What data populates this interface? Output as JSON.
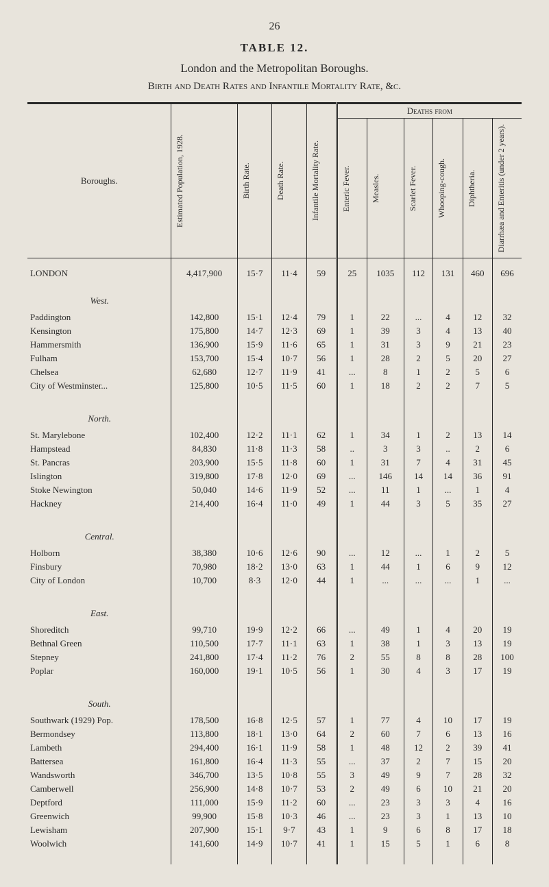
{
  "page_number": "26",
  "table_label": "TABLE 12.",
  "subtitle": "London and the Metropolitan Boroughs.",
  "caption": "Birth and Death Rates and Infantile Mortality Rate, &c.",
  "headers": {
    "boroughs": "Boroughs.",
    "pop": "Estimated Population, 1928.",
    "birth": "Birth Rate.",
    "death": "Death Rate.",
    "imr": "Infantile Mortality Rate.",
    "deaths_from": "Deaths from",
    "enteric": "Enteric Fever.",
    "measles": "Measles.",
    "scarlet": "Scarlet Fever.",
    "whoop": "Whooping-cough.",
    "diph": "Diphtheria.",
    "diarr": "Diarrhæa and Enteritis (under 2 years)."
  },
  "london": {
    "name": "LONDON",
    "pop": "4,417,900",
    "birth": "15·7",
    "death": "11·4",
    "imr": "59",
    "enteric": "25",
    "measles": "1035",
    "scarlet": "112",
    "whoop": "131",
    "diph": "460",
    "diarr": "696"
  },
  "sections": [
    {
      "title": "West.",
      "rows": [
        {
          "name": "Paddington",
          "pop": "142,800",
          "birth": "15·1",
          "death": "12·4",
          "imr": "79",
          "enteric": "1",
          "measles": "22",
          "scarlet": "...",
          "whoop": "4",
          "diph": "12",
          "diarr": "32"
        },
        {
          "name": "Kensington",
          "pop": "175,800",
          "birth": "14·7",
          "death": "12·3",
          "imr": "69",
          "enteric": "1",
          "measles": "39",
          "scarlet": "3",
          "whoop": "4",
          "diph": "13",
          "diarr": "40"
        },
        {
          "name": "Hammersmith",
          "pop": "136,900",
          "birth": "15·9",
          "death": "11·6",
          "imr": "65",
          "enteric": "1",
          "measles": "31",
          "scarlet": "3",
          "whoop": "9",
          "diph": "21",
          "diarr": "23"
        },
        {
          "name": "Fulham",
          "pop": "153,700",
          "birth": "15·4",
          "death": "10·7",
          "imr": "56",
          "enteric": "1",
          "measles": "28",
          "scarlet": "2",
          "whoop": "5",
          "diph": "20",
          "diarr": "27"
        },
        {
          "name": "Chelsea",
          "pop": "62,680",
          "birth": "12·7",
          "death": "11·9",
          "imr": "41",
          "enteric": "...",
          "measles": "8",
          "scarlet": "1",
          "whoop": "2",
          "diph": "5",
          "diarr": "6"
        },
        {
          "name": "City of Westminster...",
          "pop": "125,800",
          "birth": "10·5",
          "death": "11·5",
          "imr": "60",
          "enteric": "1",
          "measles": "18",
          "scarlet": "2",
          "whoop": "2",
          "diph": "7",
          "diarr": "5"
        }
      ]
    },
    {
      "title": "North.",
      "rows": [
        {
          "name": "St. Marylebone",
          "pop": "102,400",
          "birth": "12·2",
          "death": "11·1",
          "imr": "62",
          "enteric": "1",
          "measles": "34",
          "scarlet": "1",
          "whoop": "2",
          "diph": "13",
          "diarr": "14"
        },
        {
          "name": "Hampstead",
          "pop": "84,830",
          "birth": "11·8",
          "death": "11·3",
          "imr": "58",
          "enteric": "..",
          "measles": "3",
          "scarlet": "3",
          "whoop": "..",
          "diph": "2",
          "diarr": "6"
        },
        {
          "name": "St. Pancras",
          "pop": "203,900",
          "birth": "15·5",
          "death": "11·8",
          "imr": "60",
          "enteric": "1",
          "measles": "31",
          "scarlet": "7",
          "whoop": "4",
          "diph": "31",
          "diarr": "45"
        },
        {
          "name": "Islington",
          "pop": "319,800",
          "birth": "17·8",
          "death": "12·0",
          "imr": "69",
          "enteric": "...",
          "measles": "146",
          "scarlet": "14",
          "whoop": "14",
          "diph": "36",
          "diarr": "91"
        },
        {
          "name": "Stoke Newington",
          "pop": "50,040",
          "birth": "14·6",
          "death": "11·9",
          "imr": "52",
          "enteric": "...",
          "measles": "11",
          "scarlet": "1",
          "whoop": "...",
          "diph": "1",
          "diarr": "4"
        },
        {
          "name": "Hackney",
          "pop": "214,400",
          "birth": "16·4",
          "death": "11·0",
          "imr": "49",
          "enteric": "1",
          "measles": "44",
          "scarlet": "3",
          "whoop": "5",
          "diph": "35",
          "diarr": "27"
        }
      ]
    },
    {
      "title": "Central.",
      "rows": [
        {
          "name": "Holborn",
          "pop": "38,380",
          "birth": "10·6",
          "death": "12·6",
          "imr": "90",
          "enteric": "...",
          "measles": "12",
          "scarlet": "...",
          "whoop": "1",
          "diph": "2",
          "diarr": "5"
        },
        {
          "name": "Finsbury",
          "pop": "70,980",
          "birth": "18·2",
          "death": "13·0",
          "imr": "63",
          "enteric": "1",
          "measles": "44",
          "scarlet": "1",
          "whoop": "6",
          "diph": "9",
          "diarr": "12"
        },
        {
          "name": "City of London",
          "pop": "10,700",
          "birth": "8·3",
          "death": "12·0",
          "imr": "44",
          "enteric": "1",
          "measles": "...",
          "scarlet": "...",
          "whoop": "...",
          "diph": "1",
          "diarr": "..."
        }
      ]
    },
    {
      "title": "East.",
      "rows": [
        {
          "name": "Shoreditch",
          "pop": "99,710",
          "birth": "19·9",
          "death": "12·2",
          "imr": "66",
          "enteric": "...",
          "measles": "49",
          "scarlet": "1",
          "whoop": "4",
          "diph": "20",
          "diarr": "19"
        },
        {
          "name": "Bethnal Green",
          "pop": "110,500",
          "birth": "17·7",
          "death": "11·1",
          "imr": "63",
          "enteric": "1",
          "measles": "38",
          "scarlet": "1",
          "whoop": "3",
          "diph": "13",
          "diarr": "19"
        },
        {
          "name": "Stepney",
          "pop": "241,800",
          "birth": "17·4",
          "death": "11·2",
          "imr": "76",
          "enteric": "2",
          "measles": "55",
          "scarlet": "8",
          "whoop": "8",
          "diph": "28",
          "diarr": "100"
        },
        {
          "name": "Poplar",
          "pop": "160,000",
          "birth": "19·1",
          "death": "10·5",
          "imr": "56",
          "enteric": "1",
          "measles": "30",
          "scarlet": "4",
          "whoop": "3",
          "diph": "17",
          "diarr": "19"
        }
      ]
    },
    {
      "title": "South.",
      "rows": [
        {
          "name": "Southwark (1929) Pop.",
          "pop": "178,500",
          "birth": "16·8",
          "death": "12·5",
          "imr": "57",
          "enteric": "1",
          "measles": "77",
          "scarlet": "4",
          "whoop": "10",
          "diph": "17",
          "diarr": "19"
        },
        {
          "name": "Bermondsey",
          "pop": "113,800",
          "birth": "18·1",
          "death": "13·0",
          "imr": "64",
          "enteric": "2",
          "measles": "60",
          "scarlet": "7",
          "whoop": "6",
          "diph": "13",
          "diarr": "16"
        },
        {
          "name": "Lambeth",
          "pop": "294,400",
          "birth": "16·1",
          "death": "11·9",
          "imr": "58",
          "enteric": "1",
          "measles": "48",
          "scarlet": "12",
          "whoop": "2",
          "diph": "39",
          "diarr": "41"
        },
        {
          "name": "Battersea",
          "pop": "161,800",
          "birth": "16·4",
          "death": "11·3",
          "imr": "55",
          "enteric": "...",
          "measles": "37",
          "scarlet": "2",
          "whoop": "7",
          "diph": "15",
          "diarr": "20"
        },
        {
          "name": "Wandsworth",
          "pop": "346,700",
          "birth": "13·5",
          "death": "10·8",
          "imr": "55",
          "enteric": "3",
          "measles": "49",
          "scarlet": "9",
          "whoop": "7",
          "diph": "28",
          "diarr": "32"
        },
        {
          "name": "Camberwell",
          "pop": "256,900",
          "birth": "14·8",
          "death": "10·7",
          "imr": "53",
          "enteric": "2",
          "measles": "49",
          "scarlet": "6",
          "whoop": "10",
          "diph": "21",
          "diarr": "20"
        },
        {
          "name": "Deptford",
          "pop": "111,000",
          "birth": "15·9",
          "death": "11·2",
          "imr": "60",
          "enteric": "...",
          "measles": "23",
          "scarlet": "3",
          "whoop": "3",
          "diph": "4",
          "diarr": "16"
        },
        {
          "name": "Greenwich",
          "pop": "99,900",
          "birth": "15·8",
          "death": "10·3",
          "imr": "46",
          "enteric": "...",
          "measles": "23",
          "scarlet": "3",
          "whoop": "1",
          "diph": "13",
          "diarr": "10"
        },
        {
          "name": "Lewisham",
          "pop": "207,900",
          "birth": "15·1",
          "death": "9·7",
          "imr": "43",
          "enteric": "1",
          "measles": "9",
          "scarlet": "6",
          "whoop": "8",
          "diph": "17",
          "diarr": "18"
        },
        {
          "name": "Woolwich",
          "pop": "141,600",
          "birth": "14·9",
          "death": "10·7",
          "imr": "41",
          "enteric": "1",
          "measles": "15",
          "scarlet": "5",
          "whoop": "1",
          "diph": "6",
          "diarr": "8"
        }
      ]
    }
  ]
}
